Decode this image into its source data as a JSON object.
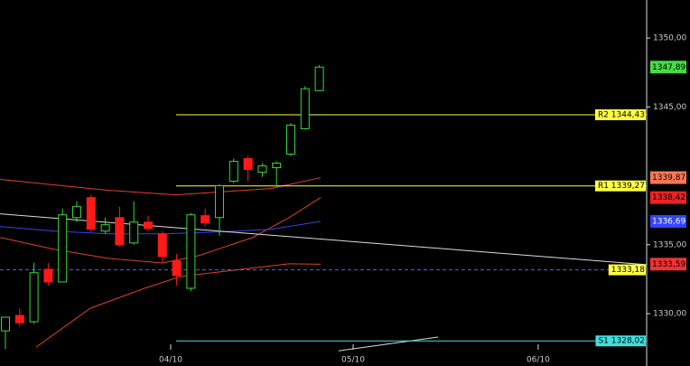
{
  "chart_data": {
    "type": "candlestick",
    "x": [
      0,
      1,
      2,
      3,
      4,
      5,
      6,
      7,
      8,
      9,
      10,
      11,
      12,
      13,
      14,
      15,
      16,
      17,
      18,
      19,
      20,
      21,
      22
    ],
    "open": [
      1328.75,
      1329.87,
      1329.41,
      1333.22,
      1332.3,
      1336.97,
      1338.42,
      1335.99,
      1336.97,
      1335.13,
      1336.64,
      1335.79,
      1333.82,
      1331.84,
      1337.11,
      1336.97,
      1339.61,
      1341.25,
      1340.26,
      1340.59,
      1341.58,
      1343.42,
      1346.18
    ],
    "high": [
      1329.74,
      1330.39,
      1333.68,
      1333.68,
      1337.63,
      1338.16,
      1338.62,
      1336.97,
      1337.76,
      1338.16,
      1337.11,
      1335.99,
      1334.34,
      1337.3,
      1337.63,
      1339.41,
      1341.25,
      1341.45,
      1340.92,
      1341.05,
      1343.82,
      1346.51,
      1348.03
    ],
    "low": [
      1327.43,
      1329.08,
      1329.28,
      1332.04,
      1332.3,
      1336.64,
      1335.92,
      1335.79,
      1334.87,
      1335.0,
      1335.99,
      1333.68,
      1332.04,
      1331.64,
      1336.32,
      1335.66,
      1339.47,
      1339.61,
      1339.93,
      1339.28,
      1341.45,
      1343.36,
      1346.18
    ],
    "close": [
      1329.74,
      1329.34,
      1332.97,
      1332.3,
      1337.17,
      1337.76,
      1336.12,
      1336.45,
      1335.0,
      1336.64,
      1336.18,
      1334.14,
      1332.76,
      1337.17,
      1336.58,
      1339.28,
      1341.05,
      1340.46,
      1340.72,
      1340.92,
      1343.68,
      1346.32,
      1347.89
    ],
    "up_color": "#33dd33",
    "down_color": "#ff1a1a",
    "lines": [
      {
        "color": "#e0402a",
        "x": [
          -0.38,
          7.22,
          11.96,
          18.61,
          22.09
        ],
        "values": [
          1339.74,
          1338.95,
          1338.62,
          1339.08,
          1339.87
        ]
      },
      {
        "color": "#e0402a",
        "x": [
          -0.38,
          3.42,
          7.22,
          11.01,
          13.54,
          17.34,
          19.87,
          22.09
        ],
        "values": [
          1335.53,
          1334.67,
          1334.01,
          1333.68,
          1334.21,
          1335.53,
          1336.97,
          1338.42
        ]
      },
      {
        "color": "#e0402a",
        "x": [
          2.15,
          5.95,
          9.75,
          12.28,
          16.08,
          19.87,
          22.09
        ],
        "values": [
          1327.57,
          1330.39,
          1331.84,
          1332.7,
          1333.16,
          1333.62,
          1333.59
        ]
      },
      {
        "color": "#3344ee",
        "x": [
          -0.38,
          3.42,
          7.22,
          11.01,
          14.81,
          18.61,
          22.09
        ],
        "values": [
          1336.32,
          1335.99,
          1335.79,
          1335.79,
          1335.92,
          1336.12,
          1336.69
        ]
      },
      {
        "color": "#dddddd",
        "x": [
          -0.38,
          44.94
        ],
        "values": [
          1337.24,
          1333.55
        ]
      },
      {
        "color": "#dddddd",
        "x": [
          23.35,
          30.32
        ],
        "values": [
          1327.3,
          1328.3
        ]
      }
    ],
    "levels": [
      {
        "label": "R2 1344,43",
        "value": 1344.43,
        "color": "#ffff44",
        "x0": 11.96,
        "dashed": false
      },
      {
        "label": "R1 1339,27",
        "value": 1339.27,
        "color": "#ffff44",
        "x0": 11.96,
        "dashed": false
      },
      {
        "label": "1333,18",
        "value": 1333.18,
        "color": "#ffff44",
        "x0": -0.38,
        "dashed": true
      },
      {
        "label": "S1 1328,02",
        "value": 1328.02,
        "color": "#44dddd",
        "x0": 11.96,
        "dashed": false
      }
    ],
    "price_tags": [
      {
        "label": "1347,89",
        "value": 1347.89,
        "color": "#44dd44"
      },
      {
        "label": "1339,87",
        "value": 1339.87,
        "color": "#ff7755"
      },
      {
        "label": "1338,42",
        "value": 1338.42,
        "color": "#ee2222"
      },
      {
        "label": "1336,69",
        "value": 1336.69,
        "color": "#3344ff"
      },
      {
        "label": "1333,59",
        "value": 1333.59,
        "color": "#ee3333"
      }
    ],
    "xlim": [
      -0.38,
      44.94
    ],
    "ylim": [
      1326.2,
      1352.76
    ],
    "xticks": [
      {
        "value": 11.58,
        "label": "04/10"
      },
      {
        "value": 24.37,
        "label": "05/10"
      },
      {
        "value": 37.34,
        "label": "06/10"
      }
    ],
    "yticks": [
      {
        "value": 1330,
        "label": "1330,00"
      },
      {
        "value": 1335,
        "label": "1335,00"
      },
      {
        "value": 1345,
        "label": "1345,00"
      },
      {
        "value": 1350,
        "label": "1350,00"
      }
    ]
  }
}
